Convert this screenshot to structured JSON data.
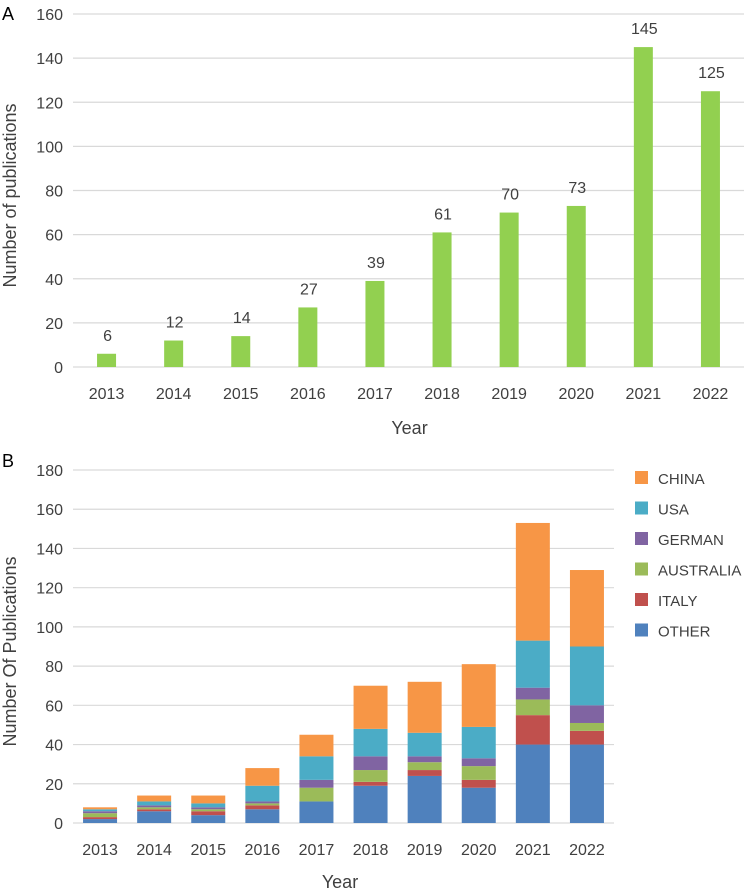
{
  "chart_data": [
    {
      "panel_label": "A",
      "type": "bar",
      "title": "",
      "xlabel": "Year",
      "ylabel": "Number of publications",
      "ylim": [
        0,
        160
      ],
      "yticks": [
        "0",
        "20",
        "40",
        "60",
        "80",
        "100",
        "120",
        "140",
        "160"
      ],
      "grid": true,
      "categories": [
        "2013",
        "2014",
        "2015",
        "2016",
        "2017",
        "2018",
        "2019",
        "2020",
        "2021",
        "2022"
      ],
      "values": [
        6,
        12,
        14,
        27,
        39,
        61,
        70,
        73,
        145,
        125
      ],
      "data_labels": [
        "6",
        "12",
        "14",
        "27",
        "39",
        "61",
        "70",
        "73",
        "145",
        "125"
      ],
      "color": "#92d050"
    },
    {
      "panel_label": "B",
      "type": "bar",
      "stacked": true,
      "title": "",
      "xlabel": "Year",
      "ylabel": "Number Of Publications",
      "ylim": [
        0,
        180
      ],
      "yticks": [
        "0",
        "20",
        "40",
        "60",
        "80",
        "100",
        "120",
        "140",
        "160",
        "180"
      ],
      "grid": true,
      "legend_position": "right",
      "categories": [
        "2013",
        "2014",
        "2015",
        "2016",
        "2017",
        "2018",
        "2019",
        "2020",
        "2021",
        "2022"
      ],
      "series": [
        {
          "name": "OTHER",
          "color": "#4f81bd",
          "values": [
            2,
            6,
            4,
            7,
            11,
            19,
            24,
            18,
            40,
            40
          ]
        },
        {
          "name": "ITALY",
          "color": "#c0504d",
          "values": [
            1,
            1,
            2,
            2,
            0,
            2,
            3,
            4,
            15,
            7
          ]
        },
        {
          "name": "AUSTRALIA",
          "color": "#9bbb59",
          "values": [
            2,
            1,
            1,
            1,
            7,
            6,
            4,
            7,
            8,
            4
          ]
        },
        {
          "name": "GERMAN",
          "color": "#8064a2",
          "values": [
            1,
            1,
            1,
            1,
            4,
            7,
            3,
            4,
            6,
            9
          ]
        },
        {
          "name": "USA",
          "color": "#4bacc6",
          "values": [
            1,
            2,
            2,
            8,
            12,
            14,
            12,
            16,
            24,
            30
          ]
        },
        {
          "name": "CHINA",
          "color": "#f79646",
          "values": [
            1,
            3,
            4,
            9,
            11,
            22,
            26,
            32,
            60,
            39
          ]
        }
      ],
      "legend_order": [
        "CHINA",
        "USA",
        "GERMAN",
        "AUSTRALIA",
        "ITALY",
        "OTHER"
      ]
    }
  ]
}
